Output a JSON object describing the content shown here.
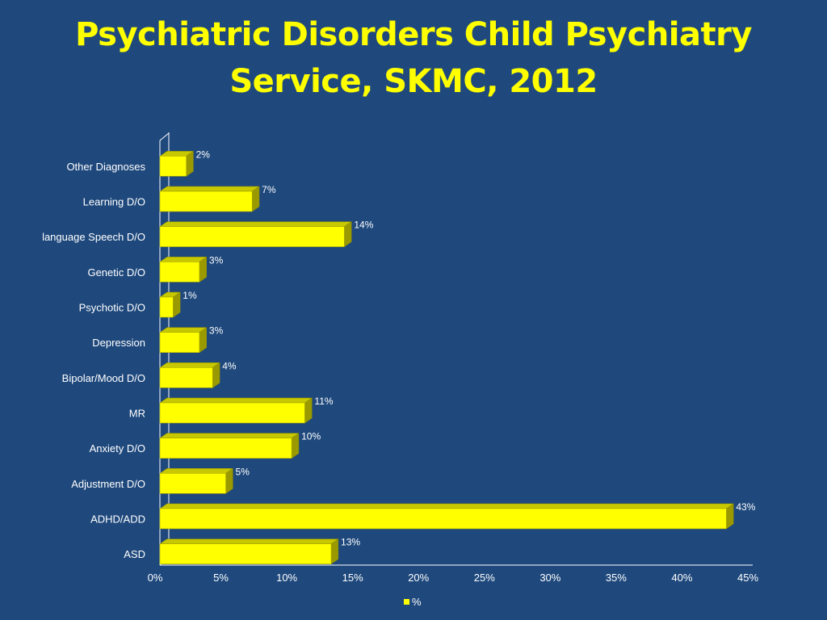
{
  "title_lines": [
    "Psychiatric Disorders Child Psychiatry",
    "Service, SKMC, 2012"
  ],
  "colors": {
    "background": "#1f497d",
    "title": "#ffff00",
    "bar_front": "#ffff00",
    "bar_top": "#c8c800",
    "bar_side": "#9a9a00"
  },
  "chart_data": {
    "type": "bar",
    "orientation": "horizontal",
    "style": "3d",
    "title": "Psychiatric Disorders Child Psychiatry Service, SKMC, 2012",
    "categories": [
      "Other Diagnoses",
      "Learning D/O",
      "language Speech D/O",
      "Genetic D/O",
      "Psychotic D/O",
      "Depression",
      "Bipolar/Mood D/O",
      "MR",
      "Anxiety D/O",
      "Adjustment D/O",
      "ADHD/ADD",
      "ASD"
    ],
    "series": [
      {
        "name": "%",
        "values": [
          2,
          7,
          14,
          3,
          1,
          3,
          4,
          11,
          10,
          5,
          43,
          13
        ],
        "data_labels": [
          "2%",
          "7%",
          "14%",
          "3%",
          "1%",
          "3%",
          "4%",
          "11%",
          "10%",
          "5%",
          "43%",
          "13%"
        ]
      }
    ],
    "xlim": [
      0,
      45
    ],
    "x_ticks": [
      "0%",
      "5%",
      "10%",
      "15%",
      "20%",
      "25%",
      "30%",
      "35%",
      "40%",
      "45%"
    ],
    "x_tick_values": [
      0,
      5,
      10,
      15,
      20,
      25,
      30,
      35,
      40,
      45
    ],
    "grid": false,
    "legend_position": "bottom",
    "legend": [
      "%"
    ]
  }
}
